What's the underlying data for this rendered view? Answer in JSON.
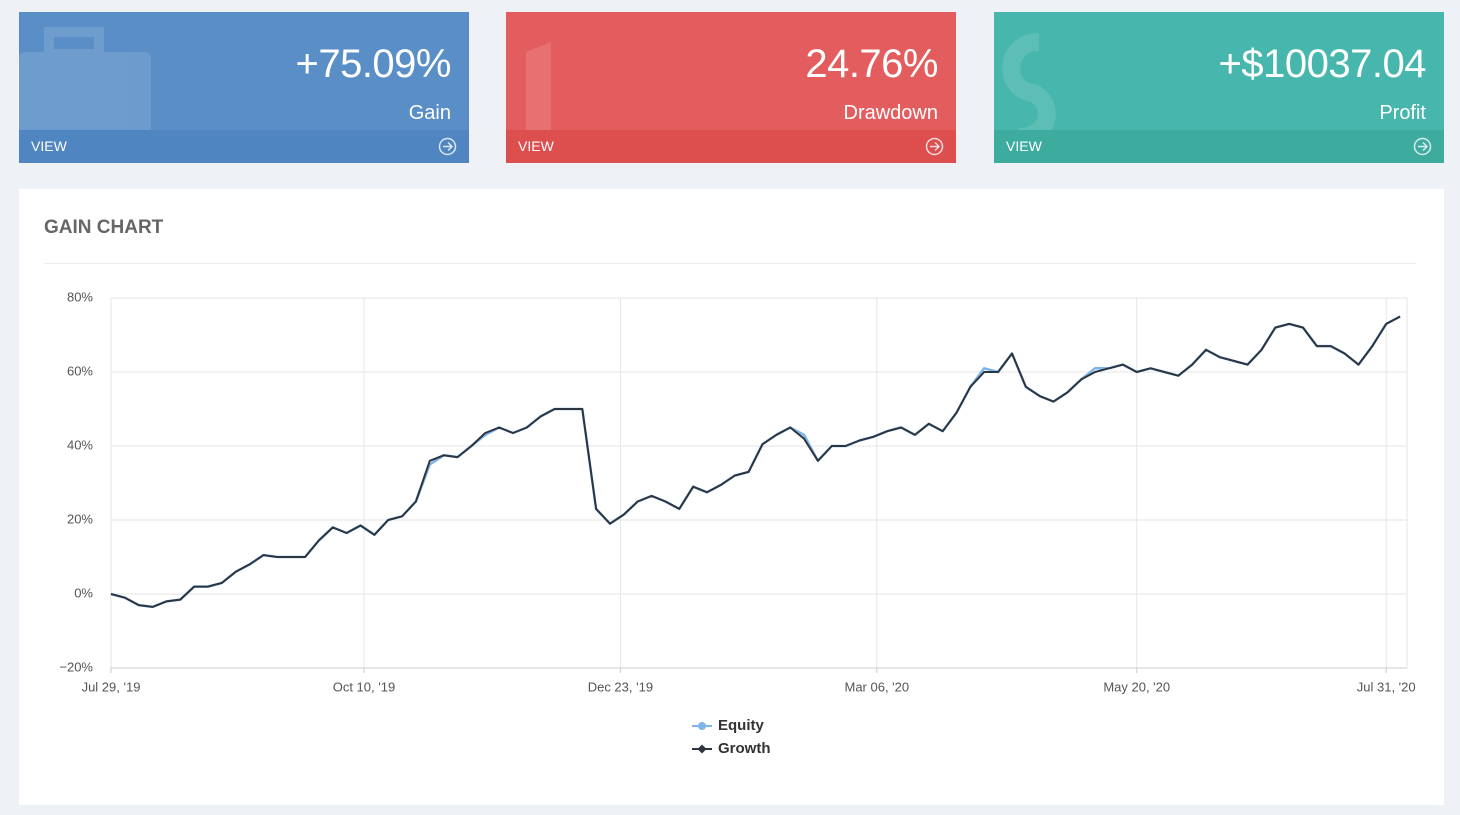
{
  "cards": [
    {
      "value": "+75.09%",
      "label": "Gain",
      "link": "VIEW"
    },
    {
      "value": "24.76%",
      "label": "Drawdown",
      "link": "VIEW"
    },
    {
      "value": "+$10037.04",
      "label": "Profit",
      "link": "VIEW"
    }
  ],
  "chart_data": {
    "type": "line",
    "title": "GAIN CHART",
    "x": [
      "2019-07-29",
      "2019-08-02",
      "2019-08-06",
      "2019-08-10",
      "2019-08-14",
      "2019-08-18",
      "2019-08-22",
      "2019-08-26",
      "2019-08-30",
      "2019-09-03",
      "2019-09-07",
      "2019-09-11",
      "2019-09-15",
      "2019-09-19",
      "2019-09-23",
      "2019-09-27",
      "2019-10-01",
      "2019-10-05",
      "2019-10-09",
      "2019-10-13",
      "2019-10-17",
      "2019-10-21",
      "2019-10-25",
      "2019-10-29",
      "2019-11-02",
      "2019-11-06",
      "2019-11-10",
      "2019-11-14",
      "2019-11-18",
      "2019-11-22",
      "2019-11-26",
      "2019-11-30",
      "2019-12-04",
      "2019-12-08",
      "2019-12-12",
      "2019-12-16",
      "2019-12-20",
      "2019-12-24",
      "2019-12-28",
      "2020-01-01",
      "2020-01-05",
      "2020-01-09",
      "2020-01-13",
      "2020-01-17",
      "2020-01-21",
      "2020-01-25",
      "2020-01-29",
      "2020-02-02",
      "2020-02-06",
      "2020-02-10",
      "2020-02-14",
      "2020-02-18",
      "2020-02-22",
      "2020-02-26",
      "2020-03-01",
      "2020-03-05",
      "2020-03-09",
      "2020-03-13",
      "2020-03-17",
      "2020-03-21",
      "2020-03-25",
      "2020-03-29",
      "2020-04-02",
      "2020-04-06",
      "2020-04-10",
      "2020-04-14",
      "2020-04-18",
      "2020-04-22",
      "2020-04-26",
      "2020-04-30",
      "2020-05-04",
      "2020-05-08",
      "2020-05-12",
      "2020-05-16",
      "2020-05-20",
      "2020-05-24",
      "2020-05-28",
      "2020-06-01",
      "2020-06-05",
      "2020-06-09",
      "2020-06-13",
      "2020-06-17",
      "2020-06-21",
      "2020-06-25",
      "2020-06-29",
      "2020-07-03",
      "2020-07-07",
      "2020-07-11",
      "2020-07-15",
      "2020-07-19",
      "2020-07-23",
      "2020-07-27",
      "2020-07-31",
      "2020-08-04"
    ],
    "series": [
      {
        "name": "Equity",
        "color": "#7cb5ec",
        "values": [
          0,
          -1,
          -3,
          -3.5,
          -2,
          -1.5,
          2,
          2,
          3,
          6,
          8,
          10.5,
          10,
          10,
          10,
          14.5,
          18,
          16.5,
          18.5,
          16,
          20,
          21,
          25,
          35,
          37.5,
          37,
          40,
          43,
          45,
          43.5,
          45,
          48,
          50,
          50,
          50,
          23,
          19,
          21.5,
          25,
          26.5,
          25,
          23,
          29,
          27.5,
          29.5,
          32,
          33,
          40.5,
          43,
          45,
          43,
          36,
          40,
          40,
          41.5,
          42.5,
          44,
          45,
          43,
          46,
          44,
          49,
          56,
          61,
          60,
          65,
          56,
          53.5,
          52,
          54.5,
          58,
          61,
          61,
          62,
          60,
          61,
          60,
          59,
          62,
          66,
          64,
          63,
          62,
          66,
          72,
          73,
          72,
          67,
          67,
          65,
          62,
          67,
          73,
          75
        ]
      },
      {
        "name": "Growth",
        "color": "#2d3540",
        "values": [
          0,
          -1,
          -3,
          -3.5,
          -2,
          -1.5,
          2,
          2,
          3,
          6,
          8,
          10.5,
          10,
          10,
          10,
          14.5,
          18,
          16.5,
          18.5,
          16,
          20,
          21,
          25,
          36,
          37.5,
          37,
          40,
          43.5,
          45,
          43.5,
          45,
          48,
          50,
          50,
          50,
          23,
          19,
          21.5,
          25,
          26.5,
          25,
          23,
          29,
          27.5,
          29.5,
          32,
          33,
          40.5,
          43,
          45,
          42,
          36,
          40,
          40,
          41.5,
          42.5,
          44,
          45,
          43,
          46,
          44,
          49,
          56,
          60,
          60,
          65,
          56,
          53.5,
          52,
          54.5,
          58,
          60,
          61,
          62,
          60,
          61,
          60,
          59,
          62,
          66,
          64,
          63,
          62,
          66,
          72,
          73,
          72,
          67,
          67,
          65,
          62,
          67,
          73,
          75
        ]
      }
    ],
    "xlim": [
      "2019-07-29",
      "2020-08-06"
    ],
    "xticks": [
      {
        "value": "2019-07-29",
        "label": "Jul 29, '19"
      },
      {
        "value": "2019-10-10",
        "label": "Oct 10, '19"
      },
      {
        "value": "2019-12-23",
        "label": "Dec 23, '19"
      },
      {
        "value": "2020-03-06",
        "label": "Mar 06, '20"
      },
      {
        "value": "2020-05-20",
        "label": "May 20, '20"
      },
      {
        "value": "2020-07-31",
        "label": "Jul 31, '20"
      }
    ],
    "ylim": [
      -20,
      80
    ],
    "yticks": [
      {
        "value": -20,
        "label": "−20%"
      },
      {
        "value": 0,
        "label": "0%"
      },
      {
        "value": 20,
        "label": "20%"
      },
      {
        "value": 40,
        "label": "40%"
      },
      {
        "value": 60,
        "label": "60%"
      },
      {
        "value": 80,
        "label": "80%"
      }
    ],
    "grid": true,
    "legend": "bottom"
  }
}
